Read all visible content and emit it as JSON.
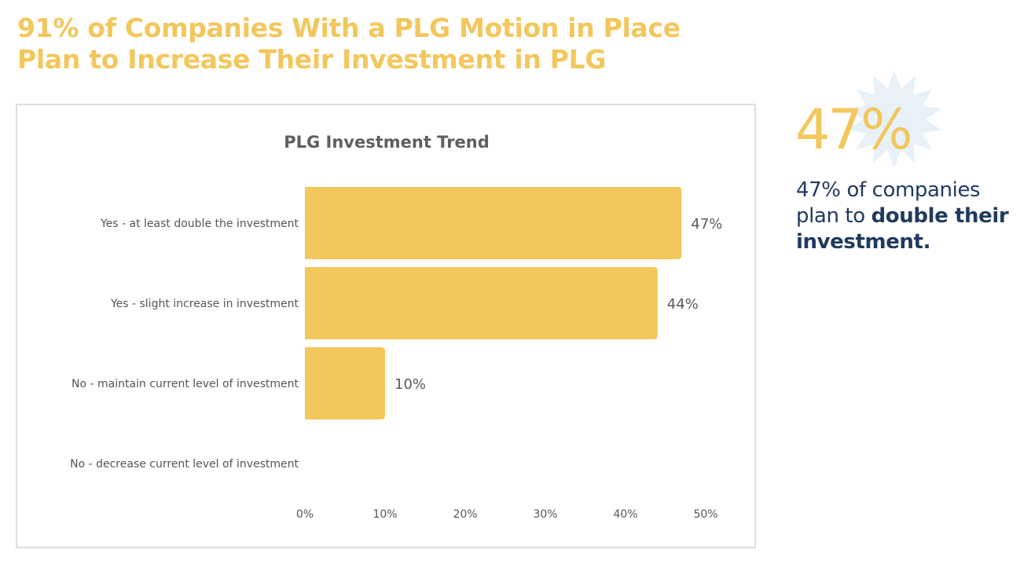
{
  "headline": {
    "line1": "91% of Companies With a PLG Motion in Place",
    "line2": "Plan to Increase Their Investment in PLG"
  },
  "colors": {
    "accent": "#f2c75c",
    "navy": "#1f3a5f",
    "starburst": "#e8f1f8",
    "text_gray": "#555555"
  },
  "chart_data": {
    "type": "bar",
    "orientation": "horizontal",
    "title": "PLG Investment Trend",
    "categories": [
      "Yes - at least double the investment",
      "Yes - slight increase in investment",
      "No - maintain current level of investment",
      "No - decrease current level of investment"
    ],
    "values": [
      47,
      44,
      10,
      0
    ],
    "data_labels": [
      "47%",
      "44%",
      "10%",
      ""
    ],
    "xlim": [
      0,
      50
    ],
    "xticks": [
      0,
      10,
      20,
      30,
      40,
      50
    ],
    "xtick_labels": [
      "0%",
      "10%",
      "20%",
      "30%",
      "40%",
      "50%"
    ],
    "xlabel": "",
    "ylabel": "",
    "grid": false,
    "bar_color": "#f2c75c"
  },
  "callout": {
    "big_stat": "47%",
    "text_prefix": "47% of companies plan to ",
    "text_bold": "double their investment."
  }
}
